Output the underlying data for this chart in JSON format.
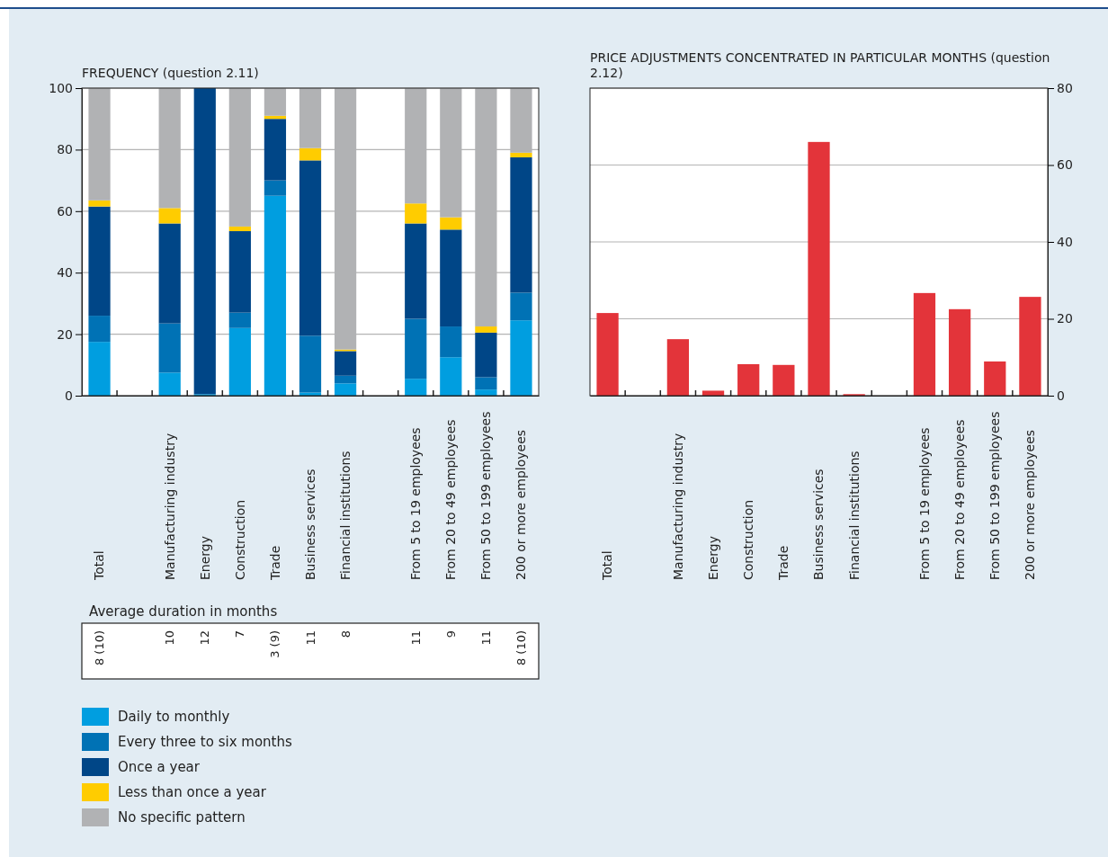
{
  "chart_data": [
    {
      "type": "bar",
      "title": "FREQUENCY (question 2.11)",
      "stacked": true,
      "categories": [
        "Total",
        null,
        "Manufacturing industry",
        "Energy",
        "Construction",
        "Trade",
        "Business services",
        "Financial institutions",
        null,
        "From 5 to 19 employees",
        "From 20 to 49 employees",
        "From 50 to 199 employees",
        "200 or more employees"
      ],
      "series": [
        {
          "name": "Daily to monthly",
          "color": "#009ee0",
          "values": [
            17.5,
            null,
            7.5,
            0.5,
            22,
            65,
            1,
            4,
            null,
            5.5,
            12.5,
            2,
            24.5
          ]
        },
        {
          "name": "Every three to six months",
          "color": "#0072b5",
          "values": [
            8.5,
            null,
            16,
            0,
            5,
            5,
            18.5,
            2.5,
            null,
            19.5,
            10,
            4,
            9
          ]
        },
        {
          "name": "Once a year",
          "color": "#004687",
          "values": [
            35.5,
            null,
            32.5,
            99.5,
            26.5,
            20,
            57,
            8,
            null,
            31,
            31.5,
            14.5,
            44
          ]
        },
        {
          "name": "Less than once a year",
          "color": "#ffcc00",
          "values": [
            2,
            null,
            5,
            0,
            1.5,
            1,
            4,
            0.5,
            null,
            6.5,
            4,
            2,
            1.5
          ]
        },
        {
          "name": "No specific pattern",
          "color": "#b1b2b4",
          "values": [
            36.5,
            null,
            39,
            0,
            45,
            9,
            19.5,
            85,
            null,
            37.5,
            42,
            77.5,
            21
          ]
        }
      ],
      "ylim": [
        0,
        100
      ],
      "yticks": [
        0,
        20,
        40,
        60,
        80,
        100
      ],
      "grid": "y",
      "legend": "bottom",
      "annotations": [
        "Average duration in months",
        "8 (10)",
        "10",
        "12",
        "7",
        "3 (9)",
        "11",
        "8",
        "11",
        "9",
        "11",
        "8 (10)"
      ]
    },
    {
      "type": "bar",
      "title": "PRICE ADJUSTMENTS CONCENTRATED IN PARTICULAR MONTHS (question 2.12)",
      "categories": [
        "Total",
        null,
        "Manufacturing industry",
        "Energy",
        "Construction",
        "Trade",
        "Business services",
        "Financial institutions",
        null,
        "From 5 to 19 employees",
        "From 20 to 49 employees",
        "From 50 to 199 employees",
        "200 or more employees"
      ],
      "values": [
        21.5,
        null,
        14.7,
        1.3,
        8.2,
        8,
        66,
        0.4,
        null,
        26.7,
        22.5,
        8.9,
        25.7
      ],
      "color": "#e3343a",
      "ylim": [
        0,
        80
      ],
      "yticks": [
        0,
        20,
        40,
        60,
        80
      ],
      "grid": "y"
    }
  ]
}
